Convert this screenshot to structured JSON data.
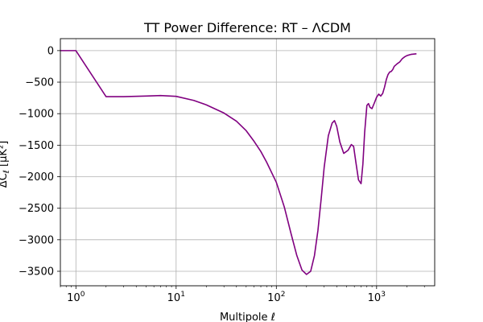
{
  "chart_data": {
    "type": "line",
    "title": "TT Power Difference: RT – ΛCDM",
    "xlabel": "Multipole ℓ",
    "ylabel": "ΔC",
    "ylabel_sub": "ℓ",
    "ylabel_unit": "[μK²]",
    "x_scale": "log",
    "xlim": [
      0.7,
      3800
    ],
    "ylim": [
      -3730,
      190
    ],
    "x_ticks": [
      {
        "value": 1,
        "base": "10",
        "exp": "0"
      },
      {
        "value": 10,
        "base": "10",
        "exp": "1"
      },
      {
        "value": 100,
        "base": "10",
        "exp": "2"
      },
      {
        "value": 1000,
        "base": "10",
        "exp": "3"
      }
    ],
    "y_ticks": [
      {
        "value": 0,
        "label": "0"
      },
      {
        "value": -500,
        "label": "−500"
      },
      {
        "value": -1000,
        "label": "−1000"
      },
      {
        "value": -1500,
        "label": "−1500"
      },
      {
        "value": -2000,
        "label": "−2000"
      },
      {
        "value": -2500,
        "label": "−2500"
      },
      {
        "value": -3000,
        "label": "−3000"
      },
      {
        "value": -3500,
        "label": "−3500"
      }
    ],
    "grid": true,
    "line_color": "#800080",
    "series": [
      {
        "x": [
          0.7,
          1,
          2,
          3,
          5,
          7,
          10,
          15,
          20,
          30,
          40,
          50,
          60,
          70,
          80,
          100,
          120,
          140,
          160,
          180,
          200,
          220,
          240,
          260,
          280,
          300,
          330,
          360,
          380,
          400,
          430,
          470,
          520,
          560,
          590,
          620,
          660,
          700,
          730,
          760,
          800,
          830,
          860,
          900,
          950,
          1000,
          1050,
          1100,
          1150,
          1200,
          1250,
          1300,
          1350,
          1400,
          1450,
          1500,
          1600,
          1700,
          1800,
          1900,
          2000,
          2200,
          2500
        ],
        "y": [
          0,
          0,
          -730,
          -730,
          -720,
          -712,
          -725,
          -790,
          -860,
          -990,
          -1120,
          -1270,
          -1440,
          -1600,
          -1770,
          -2090,
          -2480,
          -2900,
          -3250,
          -3480,
          -3550,
          -3500,
          -3250,
          -2850,
          -2350,
          -1850,
          -1350,
          -1150,
          -1110,
          -1200,
          -1450,
          -1630,
          -1580,
          -1490,
          -1520,
          -1760,
          -2050,
          -2110,
          -1800,
          -1300,
          -870,
          -840,
          -900,
          -920,
          -830,
          -740,
          -690,
          -720,
          -680,
          -580,
          -460,
          -380,
          -340,
          -330,
          -300,
          -250,
          -210,
          -180,
          -130,
          -100,
          -80,
          -60,
          -50
        ]
      }
    ]
  }
}
